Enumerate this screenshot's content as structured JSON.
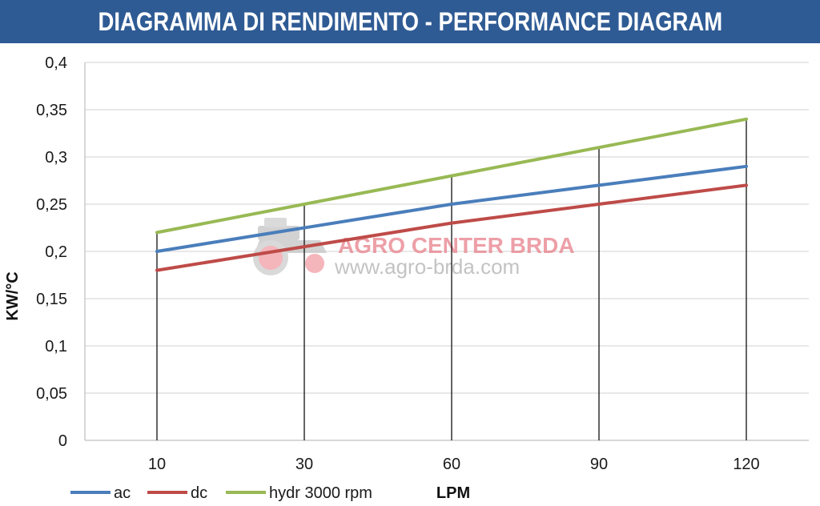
{
  "header": {
    "title": "DIAGRAMMA DI RENDIMENTO - PERFORMANCE DIAGRAM"
  },
  "watermark": {
    "title": "AGRO CENTER BRDA",
    "url": "www.agro-brda.com"
  },
  "colors": {
    "header_bg": "#2f5b94",
    "ac": "#4a7ebb",
    "dc": "#be4b48",
    "hydr": "#98b954",
    "grid": "#d9d9d9"
  },
  "chart_data": {
    "type": "line",
    "title": "DIAGRAMMA DI RENDIMENTO - PERFORMANCE DIAGRAM",
    "xlabel": "LPM",
    "ylabel": "KW/°C",
    "categories": [
      "10",
      "30",
      "60",
      "90",
      "120"
    ],
    "ylim": [
      0,
      0.4
    ],
    "yticks": [
      "0",
      "0,05",
      "0,1",
      "0,15",
      "0,2",
      "0,25",
      "0,3",
      "0,35",
      "0,4"
    ],
    "grid": "horizontal",
    "legend_position": "bottom-left",
    "series": [
      {
        "name": "ac",
        "color": "#4a7ebb",
        "values": [
          0.2,
          0.225,
          0.25,
          0.27,
          0.29
        ]
      },
      {
        "name": "dc",
        "color": "#be4b48",
        "values": [
          0.18,
          0.205,
          0.23,
          0.25,
          0.27
        ]
      },
      {
        "name": "hydr 3000 rpm",
        "color": "#98b954",
        "values": [
          0.22,
          0.25,
          0.28,
          0.31,
          0.34
        ]
      }
    ]
  }
}
